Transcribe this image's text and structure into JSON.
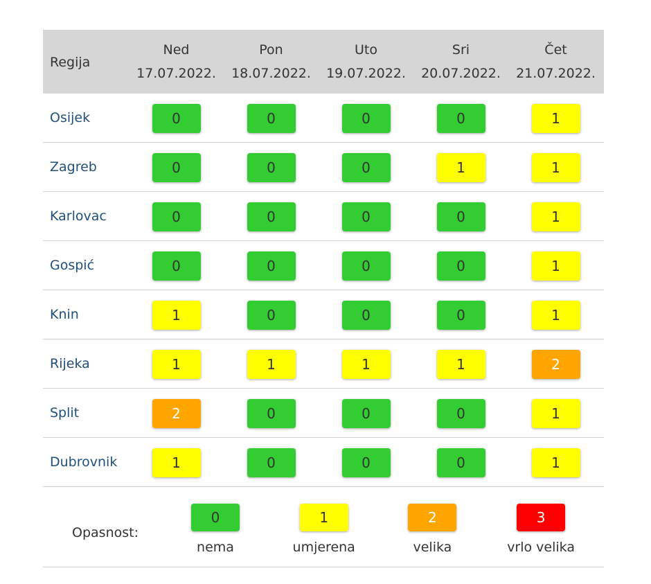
{
  "table": {
    "header": {
      "region": "Regija",
      "days": [
        {
          "day": "Ned",
          "date": "17.07.2022."
        },
        {
          "day": "Pon",
          "date": "18.07.2022."
        },
        {
          "day": "Uto",
          "date": "19.07.2022."
        },
        {
          "day": "Sri",
          "date": "20.07.2022."
        },
        {
          "day": "Čet",
          "date": "21.07.2022."
        }
      ]
    },
    "rows": [
      {
        "region": "Osijek",
        "levels": [
          0,
          0,
          0,
          0,
          1
        ]
      },
      {
        "region": "Zagreb",
        "levels": [
          0,
          0,
          0,
          1,
          1
        ]
      },
      {
        "region": "Karlovac",
        "levels": [
          0,
          0,
          0,
          0,
          1
        ]
      },
      {
        "region": "Gospić",
        "levels": [
          0,
          0,
          0,
          0,
          1
        ]
      },
      {
        "region": "Knin",
        "levels": [
          1,
          0,
          0,
          0,
          1
        ]
      },
      {
        "region": "Rijeka",
        "levels": [
          1,
          1,
          1,
          1,
          2
        ]
      },
      {
        "region": "Split",
        "levels": [
          2,
          0,
          0,
          0,
          1
        ]
      },
      {
        "region": "Dubrovnik",
        "levels": [
          1,
          0,
          0,
          0,
          1
        ]
      }
    ]
  },
  "legend": {
    "title": "Opasnost:",
    "items": [
      {
        "value": 0,
        "label": "nema",
        "color": "#33cc33",
        "text_color": "#333333"
      },
      {
        "value": 1,
        "label": "umjerena",
        "color": "#ffff00",
        "text_color": "#333333"
      },
      {
        "value": 2,
        "label": "velika",
        "color": "#ffa500",
        "text_color": "#ffffff"
      },
      {
        "value": 3,
        "label": "vrlo velika",
        "color": "#ff0000",
        "text_color": "#ffffff"
      }
    ]
  }
}
